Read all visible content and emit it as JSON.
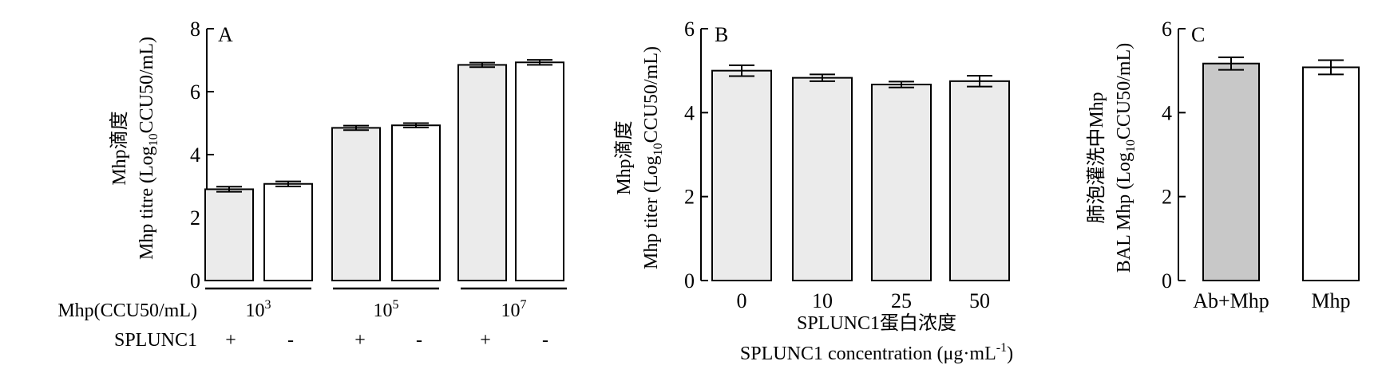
{
  "chart_data": [
    {
      "panel": "A",
      "type": "bar",
      "ylabel_cn": "Mhp滴度",
      "ylabel_en": "Mhp titre (Log",
      "ylabel_en_sub": "10",
      "ylabel_en_tail": "CCU50/mL)",
      "ylim": [
        0,
        8
      ],
      "yticks": [
        "0",
        "2",
        "4",
        "6",
        "8"
      ],
      "groups": [
        {
          "base": "10",
          "exp": "3"
        },
        {
          "base": "10",
          "exp": "5"
        },
        {
          "base": "10",
          "exp": "7"
        }
      ],
      "row1_label": "Mhp(CCU50/mL)",
      "row2_label": "SPLUNC1",
      "plus": "+",
      "minus": "-",
      "bars": [
        {
          "splunc1": "+",
          "value": 2.9,
          "err": 0.08,
          "color": "#ebebeb"
        },
        {
          "splunc1": "-",
          "value": 3.07,
          "err": 0.08,
          "color": "#ffffff"
        },
        {
          "splunc1": "+",
          "value": 4.85,
          "err": 0.07,
          "color": "#ebebeb"
        },
        {
          "splunc1": "-",
          "value": 4.93,
          "err": 0.07,
          "color": "#ffffff"
        },
        {
          "splunc1": "+",
          "value": 6.85,
          "err": 0.07,
          "color": "#ebebeb"
        },
        {
          "splunc1": "-",
          "value": 6.93,
          "err": 0.08,
          "color": "#ffffff"
        }
      ]
    },
    {
      "panel": "B",
      "type": "bar",
      "ylabel_cn": "Mhp滴度",
      "ylabel_en": "Mhp titer (Log",
      "ylabel_en_sub": "10",
      "ylabel_en_tail": "CCU50/mL)",
      "xlabel_cn": "SPLUNC1蛋白浓度",
      "xlabel_en": "SPLUNC1 concentration (μg·mL",
      "xlabel_en_sup": "-1",
      "xlabel_en_tail": ")",
      "ylim": [
        0,
        6
      ],
      "yticks": [
        "0",
        "2",
        "4",
        "6"
      ],
      "categories": [
        "0",
        "10",
        "25",
        "50"
      ],
      "values": [
        5.0,
        4.83,
        4.67,
        4.75
      ],
      "errors": [
        0.13,
        0.08,
        0.07,
        0.13
      ],
      "bar_color": "#ebebeb"
    },
    {
      "panel": "C",
      "type": "bar",
      "ylabel_cn": "肺泡灌洗中Mhp",
      "ylabel_en": "BAL Mhp (Log",
      "ylabel_en_sub": "10",
      "ylabel_en_tail": "CCU50/mL)",
      "ylim": [
        0,
        6
      ],
      "yticks": [
        "0",
        "2",
        "4",
        "6"
      ],
      "categories": [
        "Ab+Mhp",
        "Mhp"
      ],
      "values": [
        5.17,
        5.08
      ],
      "errors": [
        0.15,
        0.17
      ],
      "bar_colors": [
        "#c8c8c8",
        "#ffffff"
      ]
    }
  ]
}
